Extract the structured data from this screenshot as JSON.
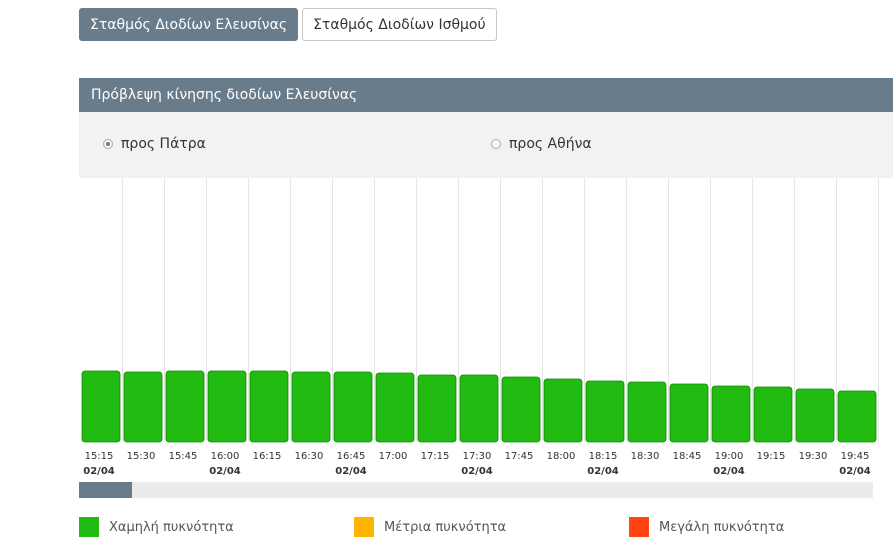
{
  "tabs": [
    {
      "label": "Σταθμός Διοδίων Ελευσίνας",
      "active": true
    },
    {
      "label": "Σταθμός Διοδίων Ισθμού",
      "active": false
    }
  ],
  "panel": {
    "title": "Πρόβλεψη κίνησης διοδίων Ελευσίνας",
    "directions": [
      {
        "label": "προς Πάτρα",
        "checked": true
      },
      {
        "label": "προς Αθήνα",
        "checked": false
      }
    ]
  },
  "chart_data": {
    "type": "bar",
    "categories": [
      "15:15",
      "15:30",
      "15:45",
      "16:00",
      "16:15",
      "16:30",
      "16:45",
      "17:00",
      "17:15",
      "17:30",
      "17:45",
      "18:00",
      "18:15",
      "18:30",
      "18:45",
      "19:00",
      "19:15",
      "19:30",
      "19:45"
    ],
    "date_labels": [
      "02/04",
      "",
      "",
      "02/04",
      "",
      "",
      "02/04",
      "",
      "",
      "02/04",
      "",
      "",
      "02/04",
      "",
      "",
      "02/04",
      "",
      "",
      "02/04"
    ],
    "values": [
      71,
      70,
      71,
      71,
      71,
      70,
      70,
      69,
      67,
      67,
      65,
      63,
      61,
      60,
      58,
      56,
      55,
      53,
      51
    ],
    "ylim": [
      0,
      264
    ],
    "bar_color": "#22bb11",
    "grid": true
  },
  "scrollbar": {
    "position": 0.0
  },
  "legend": [
    {
      "label": "Χαμηλή πυκνότητα",
      "color": "#22bb11"
    },
    {
      "label": "Μέτρια πυκνότητα",
      "color": "#ffb400"
    },
    {
      "label": "Μεγάλη πυκνότητα",
      "color": "#ff4411"
    }
  ]
}
